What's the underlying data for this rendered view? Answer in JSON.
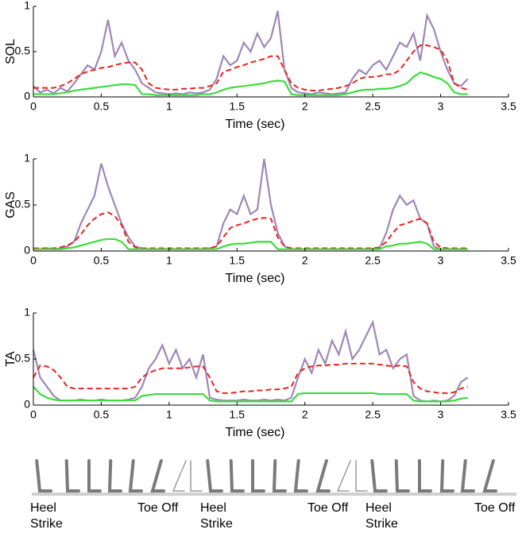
{
  "chart_data": [
    {
      "type": "line",
      "ylabel": "SOL",
      "xlabel": "Time (sec)",
      "xlim": [
        0,
        3.5
      ],
      "ylim": [
        0,
        1
      ],
      "xticks": [
        0,
        0.5,
        1,
        1.5,
        2,
        2.5,
        3,
        3.5
      ],
      "yticks": [
        0,
        0.5,
        1
      ],
      "x": [
        0,
        0.05,
        0.1,
        0.15,
        0.2,
        0.25,
        0.3,
        0.35,
        0.4,
        0.45,
        0.5,
        0.55,
        0.6,
        0.65,
        0.7,
        0.75,
        0.8,
        0.85,
        0.9,
        0.95,
        1,
        1.05,
        1.1,
        1.15,
        1.2,
        1.25,
        1.3,
        1.35,
        1.4,
        1.45,
        1.5,
        1.55,
        1.6,
        1.65,
        1.7,
        1.75,
        1.8,
        1.85,
        1.9,
        1.95,
        2,
        2.05,
        2.1,
        2.15,
        2.2,
        2.25,
        2.3,
        2.35,
        2.4,
        2.45,
        2.5,
        2.55,
        2.6,
        2.65,
        2.7,
        2.75,
        2.8,
        2.85,
        2.9,
        2.95,
        3,
        3.05,
        3.1,
        3.15,
        3.2
      ],
      "series": [
        {
          "color": "#9f86b8",
          "style": "solid",
          "values": [
            0.12,
            0.05,
            0.08,
            0.04,
            0.1,
            0.06,
            0.15,
            0.25,
            0.35,
            0.3,
            0.5,
            0.85,
            0.45,
            0.6,
            0.4,
            0.3,
            0.15,
            0.1,
            0.05,
            0.04,
            0.03,
            0.04,
            0.03,
            0.05,
            0.04,
            0.05,
            0.08,
            0.2,
            0.45,
            0.35,
            0.4,
            0.6,
            0.5,
            0.7,
            0.55,
            0.65,
            0.95,
            0.3,
            0.1,
            0.05,
            0.04,
            0.03,
            0.05,
            0.04,
            0.03,
            0.04,
            0.05,
            0.2,
            0.3,
            0.25,
            0.35,
            0.4,
            0.3,
            0.45,
            0.6,
            0.55,
            0.7,
            0.4,
            0.9,
            0.75,
            0.5,
            0.3,
            0.15,
            0.12,
            0.2
          ]
        },
        {
          "color": "#e8251e",
          "style": "dashed",
          "values": [
            0.1,
            0.1,
            0.1,
            0.1,
            0.12,
            0.15,
            0.2,
            0.25,
            0.28,
            0.3,
            0.32,
            0.33,
            0.35,
            0.37,
            0.38,
            0.38,
            0.3,
            0.15,
            0.1,
            0.09,
            0.08,
            0.08,
            0.09,
            0.09,
            0.1,
            0.1,
            0.12,
            0.15,
            0.28,
            0.3,
            0.33,
            0.35,
            0.38,
            0.4,
            0.42,
            0.45,
            0.45,
            0.3,
            0.15,
            0.1,
            0.08,
            0.07,
            0.07,
            0.08,
            0.09,
            0.1,
            0.12,
            0.15,
            0.2,
            0.22,
            0.22,
            0.23,
            0.25,
            0.25,
            0.3,
            0.4,
            0.5,
            0.57,
            0.57,
            0.55,
            0.52,
            0.4,
            0.15,
            0.1,
            0.08
          ]
        },
        {
          "color": "#3ddc3d",
          "style": "solid",
          "values": [
            0.03,
            0.03,
            0.03,
            0.03,
            0.04,
            0.05,
            0.07,
            0.08,
            0.09,
            0.1,
            0.11,
            0.12,
            0.13,
            0.14,
            0.14,
            0.13,
            0.03,
            0.03,
            0.02,
            0.02,
            0.02,
            0.02,
            0.02,
            0.02,
            0.02,
            0.03,
            0.03,
            0.05,
            0.08,
            0.1,
            0.11,
            0.12,
            0.13,
            0.14,
            0.15,
            0.17,
            0.18,
            0.17,
            0.03,
            0.02,
            0.02,
            0.02,
            0.02,
            0.02,
            0.02,
            0.02,
            0.03,
            0.05,
            0.07,
            0.08,
            0.08,
            0.09,
            0.09,
            0.1,
            0.12,
            0.15,
            0.22,
            0.27,
            0.25,
            0.22,
            0.2,
            0.15,
            0.05,
            0.03,
            0.03
          ]
        }
      ]
    },
    {
      "type": "line",
      "ylabel": "GAS",
      "xlabel": "Time (sec)",
      "xlim": [
        0,
        3.5
      ],
      "ylim": [
        0,
        1
      ],
      "xticks": [
        0,
        0.5,
        1,
        1.5,
        2,
        2.5,
        3,
        3.5
      ],
      "yticks": [
        0,
        0.5,
        1
      ],
      "x": [
        0,
        0.05,
        0.1,
        0.15,
        0.2,
        0.25,
        0.3,
        0.35,
        0.4,
        0.45,
        0.5,
        0.55,
        0.6,
        0.65,
        0.7,
        0.75,
        0.8,
        0.85,
        0.9,
        0.95,
        1,
        1.05,
        1.1,
        1.15,
        1.2,
        1.25,
        1.3,
        1.35,
        1.4,
        1.45,
        1.5,
        1.55,
        1.6,
        1.65,
        1.7,
        1.75,
        1.8,
        1.85,
        1.9,
        1.95,
        2,
        2.05,
        2.1,
        2.15,
        2.2,
        2.25,
        2.3,
        2.35,
        2.4,
        2.45,
        2.5,
        2.55,
        2.6,
        2.65,
        2.7,
        2.75,
        2.8,
        2.85,
        2.9,
        2.95,
        3,
        3.05,
        3.1,
        3.15,
        3.2
      ],
      "series": [
        {
          "color": "#9f86b8",
          "style": "solid",
          "values": [
            0.02,
            0.02,
            0.03,
            0.02,
            0.03,
            0.05,
            0.1,
            0.3,
            0.45,
            0.6,
            0.95,
            0.7,
            0.5,
            0.3,
            0.15,
            0.05,
            0.03,
            0.02,
            0.02,
            0.02,
            0.02,
            0.02,
            0.02,
            0.02,
            0.02,
            0.02,
            0.03,
            0.05,
            0.3,
            0.45,
            0.4,
            0.6,
            0.4,
            0.45,
            1.0,
            0.5,
            0.2,
            0.05,
            0.02,
            0.02,
            0.02,
            0.02,
            0.02,
            0.02,
            0.02,
            0.02,
            0.02,
            0.02,
            0.02,
            0.02,
            0.02,
            0.03,
            0.2,
            0.45,
            0.6,
            0.5,
            0.55,
            0.35,
            0.3,
            0.05,
            0.02,
            0.02,
            0.02,
            0.02,
            0.02
          ]
        },
        {
          "color": "#e8251e",
          "style": "dashed",
          "values": [
            0.03,
            0.03,
            0.03,
            0.03,
            0.04,
            0.06,
            0.1,
            0.18,
            0.28,
            0.35,
            0.4,
            0.42,
            0.38,
            0.28,
            0.1,
            0.04,
            0.03,
            0.03,
            0.03,
            0.03,
            0.03,
            0.03,
            0.03,
            0.03,
            0.03,
            0.03,
            0.03,
            0.05,
            0.15,
            0.25,
            0.28,
            0.3,
            0.33,
            0.35,
            0.36,
            0.35,
            0.15,
            0.05,
            0.03,
            0.03,
            0.03,
            0.03,
            0.03,
            0.03,
            0.03,
            0.03,
            0.03,
            0.03,
            0.03,
            0.03,
            0.03,
            0.04,
            0.1,
            0.2,
            0.28,
            0.3,
            0.33,
            0.35,
            0.3,
            0.1,
            0.04,
            0.03,
            0.03,
            0.03,
            0.03
          ]
        },
        {
          "color": "#3ddc3d",
          "style": "solid",
          "values": [
            0.02,
            0.02,
            0.02,
            0.02,
            0.02,
            0.03,
            0.04,
            0.06,
            0.08,
            0.1,
            0.12,
            0.13,
            0.13,
            0.1,
            0.02,
            0.02,
            0.02,
            0.02,
            0.02,
            0.02,
            0.02,
            0.02,
            0.02,
            0.02,
            0.02,
            0.02,
            0.02,
            0.02,
            0.05,
            0.07,
            0.08,
            0.08,
            0.09,
            0.1,
            0.1,
            0.1,
            0.02,
            0.02,
            0.02,
            0.02,
            0.02,
            0.02,
            0.02,
            0.02,
            0.02,
            0.02,
            0.02,
            0.02,
            0.02,
            0.02,
            0.02,
            0.02,
            0.05,
            0.06,
            0.08,
            0.08,
            0.09,
            0.1,
            0.08,
            0.02,
            0.02,
            0.02,
            0.02,
            0.02,
            0.02
          ]
        }
      ]
    },
    {
      "type": "line",
      "ylabel": "TA",
      "xlabel": "Time (sec)",
      "xlim": [
        0,
        3.5
      ],
      "ylim": [
        0,
        1
      ],
      "xticks": [
        0,
        0.5,
        1,
        1.5,
        2,
        2.5,
        3,
        3.5
      ],
      "yticks": [
        0,
        0.5,
        1
      ],
      "x": [
        0,
        0.05,
        0.1,
        0.15,
        0.2,
        0.25,
        0.3,
        0.35,
        0.4,
        0.45,
        0.5,
        0.55,
        0.6,
        0.65,
        0.7,
        0.75,
        0.8,
        0.85,
        0.9,
        0.95,
        1,
        1.05,
        1.1,
        1.15,
        1.2,
        1.25,
        1.3,
        1.35,
        1.4,
        1.45,
        1.5,
        1.55,
        1.6,
        1.65,
        1.7,
        1.75,
        1.8,
        1.85,
        1.9,
        1.95,
        2,
        2.05,
        2.1,
        2.15,
        2.2,
        2.25,
        2.3,
        2.35,
        2.4,
        2.45,
        2.5,
        2.55,
        2.6,
        2.65,
        2.7,
        2.75,
        2.8,
        2.85,
        2.9,
        2.95,
        3,
        3.05,
        3.1,
        3.15,
        3.2
      ],
      "series": [
        {
          "color": "#9f86b8",
          "style": "solid",
          "values": [
            0.6,
            0.3,
            0.2,
            0.1,
            0.05,
            0.05,
            0.05,
            0.06,
            0.05,
            0.05,
            0.06,
            0.05,
            0.05,
            0.05,
            0.06,
            0.08,
            0.2,
            0.4,
            0.5,
            0.65,
            0.45,
            0.6,
            0.4,
            0.5,
            0.3,
            0.55,
            0.08,
            0.06,
            0.05,
            0.05,
            0.05,
            0.06,
            0.05,
            0.05,
            0.06,
            0.05,
            0.06,
            0.05,
            0.08,
            0.3,
            0.5,
            0.35,
            0.6,
            0.45,
            0.7,
            0.55,
            0.8,
            0.5,
            0.6,
            0.75,
            0.9,
            0.55,
            0.6,
            0.4,
            0.5,
            0.55,
            0.1,
            0.05,
            0.04,
            0.05,
            0.04,
            0.05,
            0.1,
            0.25,
            0.3
          ]
        },
        {
          "color": "#e8251e",
          "style": "dashed",
          "values": [
            0.3,
            0.43,
            0.42,
            0.38,
            0.3,
            0.2,
            0.18,
            0.18,
            0.18,
            0.18,
            0.18,
            0.18,
            0.18,
            0.18,
            0.18,
            0.2,
            0.3,
            0.35,
            0.38,
            0.4,
            0.4,
            0.4,
            0.4,
            0.41,
            0.42,
            0.42,
            0.3,
            0.15,
            0.13,
            0.13,
            0.14,
            0.15,
            0.15,
            0.16,
            0.16,
            0.17,
            0.17,
            0.18,
            0.2,
            0.35,
            0.4,
            0.42,
            0.43,
            0.43,
            0.44,
            0.44,
            0.45,
            0.45,
            0.45,
            0.45,
            0.45,
            0.44,
            0.43,
            0.42,
            0.43,
            0.42,
            0.25,
            0.18,
            0.15,
            0.14,
            0.13,
            0.13,
            0.14,
            0.18,
            0.2
          ]
        },
        {
          "color": "#3ddc3d",
          "style": "solid",
          "values": [
            0.2,
            0.12,
            0.08,
            0.06,
            0.05,
            0.05,
            0.05,
            0.05,
            0.05,
            0.05,
            0.05,
            0.05,
            0.05,
            0.05,
            0.05,
            0.05,
            0.1,
            0.11,
            0.12,
            0.12,
            0.12,
            0.12,
            0.12,
            0.12,
            0.12,
            0.12,
            0.05,
            0.04,
            0.04,
            0.04,
            0.04,
            0.04,
            0.04,
            0.04,
            0.04,
            0.04,
            0.04,
            0.04,
            0.04,
            0.12,
            0.13,
            0.13,
            0.13,
            0.13,
            0.13,
            0.13,
            0.13,
            0.13,
            0.13,
            0.13,
            0.13,
            0.12,
            0.12,
            0.12,
            0.12,
            0.12,
            0.05,
            0.04,
            0.04,
            0.04,
            0.04,
            0.04,
            0.05,
            0.07,
            0.08
          ]
        }
      ]
    }
  ],
  "gait_labels": [
    "Heel Strike",
    "Toe Off",
    "Heel Strike",
    "Toe Off",
    "Heel Strike",
    "Toe Off"
  ]
}
